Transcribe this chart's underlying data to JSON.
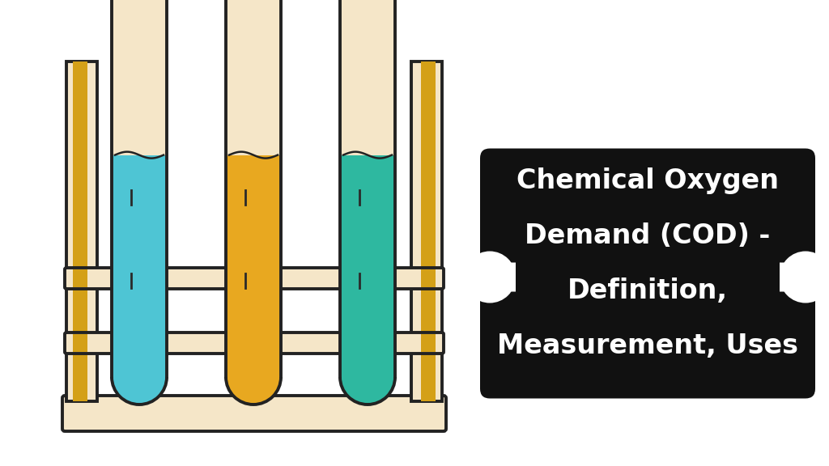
{
  "bg_color": "#ffffff",
  "rack_color": "#f5e6c8",
  "rack_outline": "#222222",
  "rack_highlight": "#d4a017",
  "tube_body_color": "#f5e6c8",
  "tube_colors": [
    "#4ec5d4",
    "#e8a820",
    "#2eb8a0"
  ],
  "text_bg": "#111111",
  "text_color": "#ffffff",
  "title_lines": [
    "Chemical Oxygen",
    "Demand (COD) -",
    "Definition,",
    "Measurement, Uses"
  ],
  "figsize": [
    10.24,
    5.76
  ],
  "dpi": 100
}
